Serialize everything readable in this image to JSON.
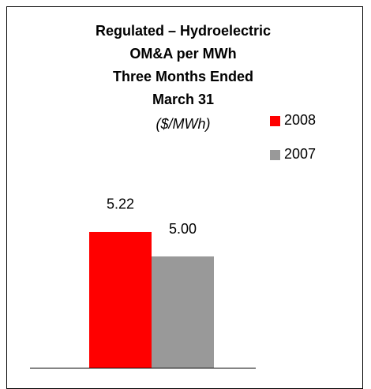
{
  "chart_data": {
    "type": "bar",
    "title": [
      "Regulated – Hydroelectric",
      "OM&A per MWh",
      "Three Months Ended",
      "March 31"
    ],
    "subtitle": "($/MWh)",
    "categories": [
      null
    ],
    "series": [
      {
        "name": "2008",
        "color": "#ff0000",
        "values": [
          5.22
        ]
      },
      {
        "name": "2007",
        "color": "#999999",
        "values": [
          5.0
        ],
        "value_labels": [
          "5.00"
        ]
      }
    ],
    "ylim": [
      4,
      6
    ],
    "legend": "right"
  }
}
